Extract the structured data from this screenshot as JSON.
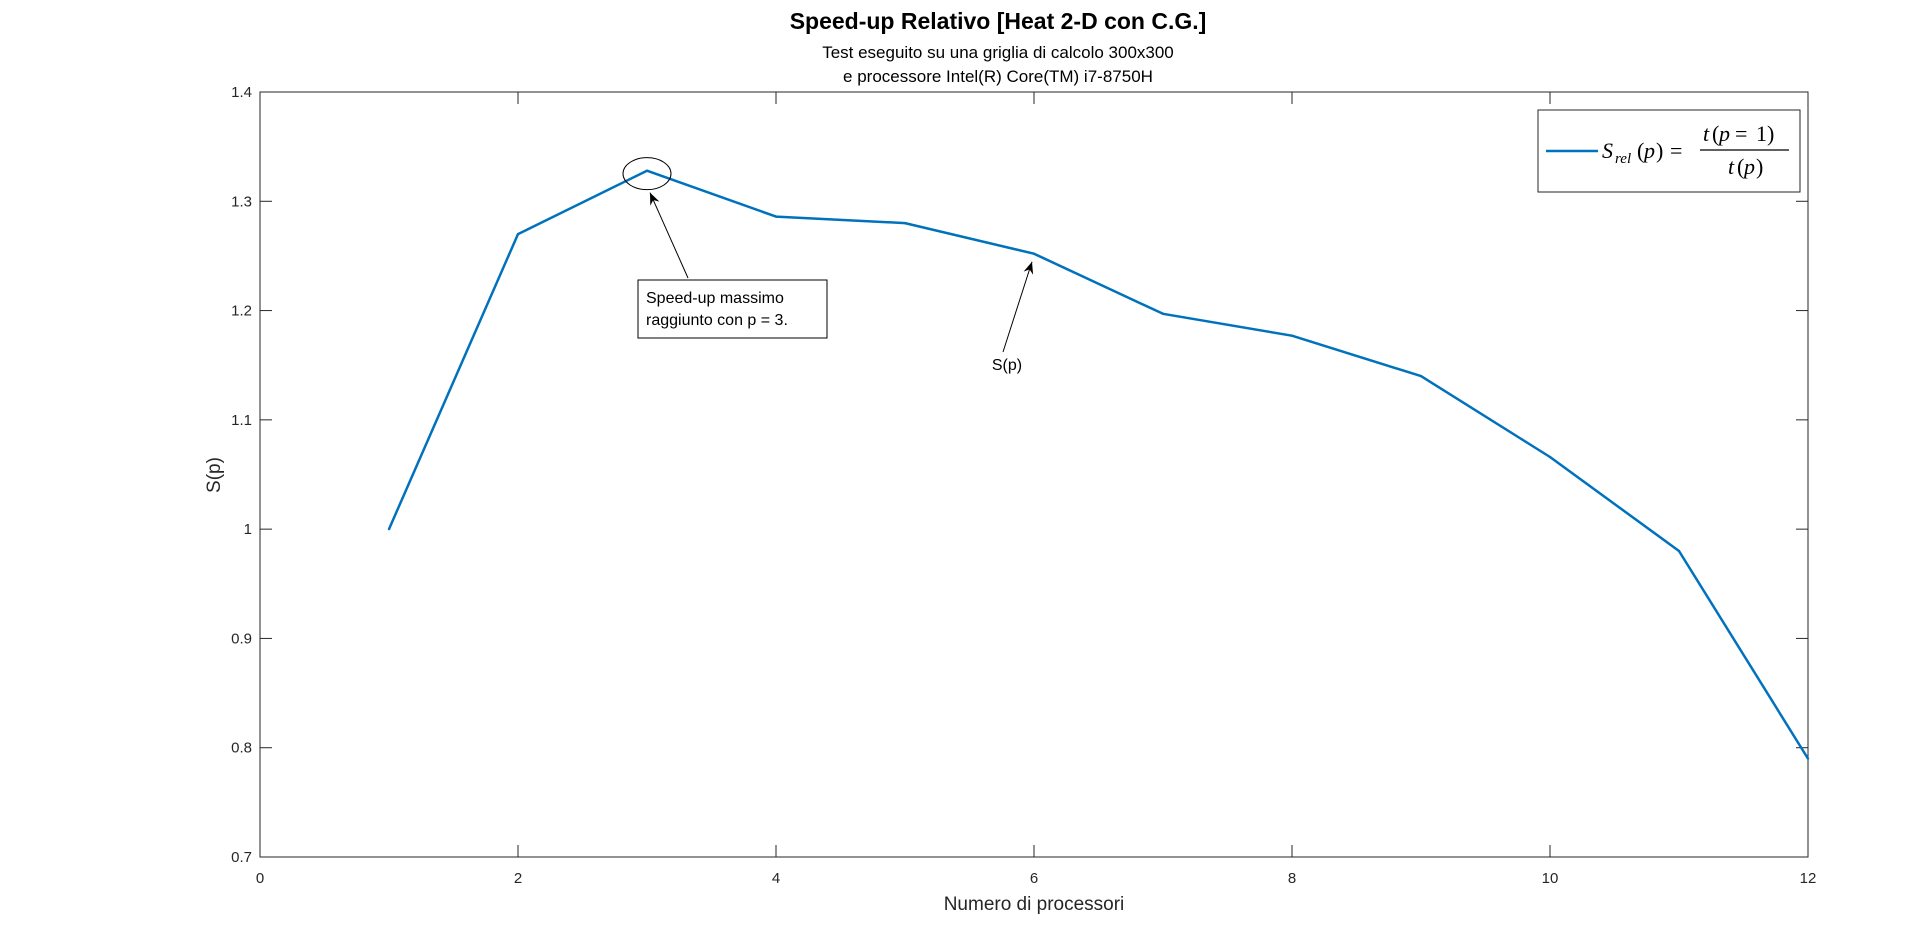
{
  "chart_data": {
    "type": "line",
    "title": "Speed-up Relativo [Heat 2-D con C.G.]",
    "subtitle": [
      "Test eseguito su una griglia di calcolo 300x300",
      "e processore Intel(R) Core(TM) i7-8750H"
    ],
    "xlabel": "Numero di processori",
    "ylabel": "S(p)",
    "xlim": [
      0,
      12
    ],
    "ylim": [
      0.7,
      1.4
    ],
    "xticks": [
      0,
      2,
      4,
      6,
      8,
      10,
      12
    ],
    "yticks": [
      0.7,
      0.8,
      0.9,
      1,
      1.1,
      1.2,
      1.3,
      1.4
    ],
    "ytick_labels": [
      "0.7",
      "0.8",
      "0.9",
      "1",
      "1.1",
      "1.2",
      "1.3",
      "1.4"
    ],
    "grid": false,
    "legend_position": "top-right",
    "series": [
      {
        "name": "S_rel(p) = t(p = 1) / t(p)",
        "color": "#0072BD",
        "x": [
          1,
          2,
          3,
          4,
          5,
          6,
          7,
          8,
          9,
          10,
          11,
          12
        ],
        "y": [
          1.0,
          1.27,
          1.328,
          1.286,
          1.28,
          1.252,
          1.197,
          1.177,
          1.14,
          1.066,
          0.98,
          0.79
        ]
      }
    ],
    "annotations": [
      {
        "text": [
          "Speed-up massimo",
          "raggiunto con p = 3."
        ],
        "x": 3,
        "y": 1.328,
        "marker": "ellipse",
        "type": "textbox-arrow"
      },
      {
        "text": [
          "S(p)"
        ],
        "x": 6,
        "y": 1.252,
        "type": "text-arrow"
      }
    ]
  }
}
